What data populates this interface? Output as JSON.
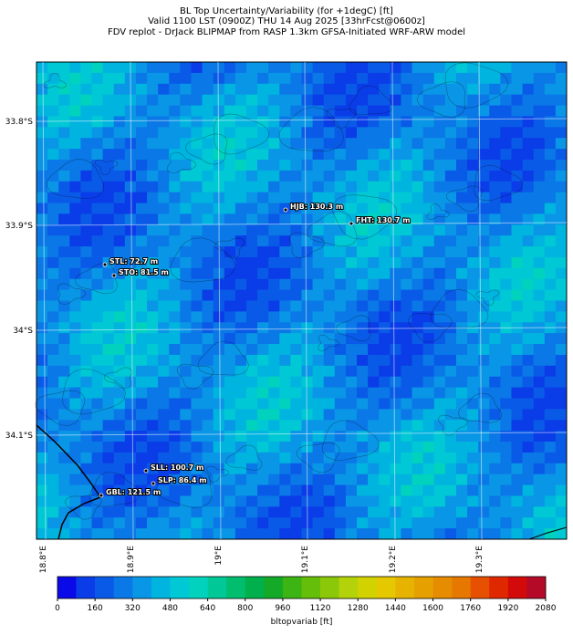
{
  "header": {
    "lines": [
      "BL Top Uncertainty/Variability (for +1degC) [ft]",
      "Valid 1100 LST (0900Z) THU 14 Aug 2025 [33hrFcst@0600z]",
      "FDV replot - DrJack BLIPMAP from RASP 1.3km GFSA-Initiated WRF-ARW model"
    ]
  },
  "map": {
    "lat_labels": [
      "33.8°S",
      "33.9°S",
      "34°S",
      "34.1°S"
    ],
    "lon_labels": [
      "18.8°E",
      "18.9°E",
      "19°E",
      "19.1°E",
      "19.2°E",
      "19.3°E"
    ],
    "stations": [
      "HJB: 130.3 m",
      "FHT: 130.7 m",
      "STL: 72.7 m",
      "STO: 81.5 m",
      "SLL: 100.7 m",
      "SLP: 86.4 m",
      "GBL: 121.5 m"
    ]
  },
  "colorbar": {
    "label": "bltopvariab [ft]",
    "ticks": [
      0,
      160,
      320,
      480,
      640,
      800,
      960,
      1120,
      1280,
      1440,
      1600,
      1760,
      1920,
      2080
    ],
    "colors": [
      "#0a0ae8",
      "#0a3ce8",
      "#0a5ae8",
      "#0a78e6",
      "#0a96e6",
      "#00b4e0",
      "#00c8d4",
      "#00d2be",
      "#00c896",
      "#00be6e",
      "#00b04c",
      "#14aa28",
      "#3cb414",
      "#64be0a",
      "#8cc80a",
      "#b4d20a",
      "#d2d200",
      "#e6c800",
      "#e6b400",
      "#e6a000",
      "#e68c00",
      "#e67800",
      "#e65000",
      "#e02800",
      "#d20a0a",
      "#b40a28"
    ]
  }
}
